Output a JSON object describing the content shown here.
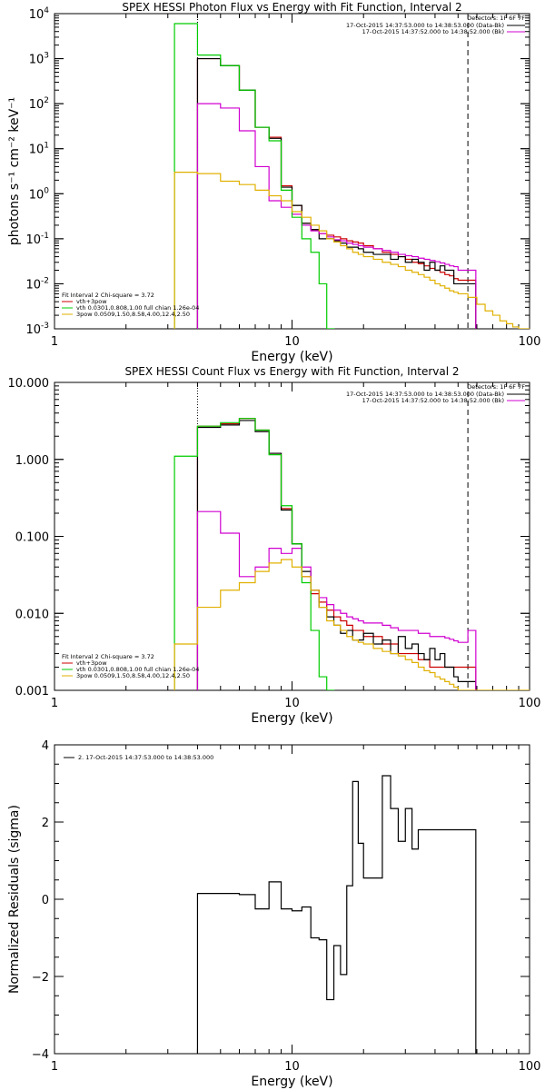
{
  "chart_data": [
    {
      "type": "line",
      "title": "SPEX HESSI Photon Flux vs Energy with Fit Function, Interval 2",
      "xlabel": "Energy (keV)",
      "ylabel": "photons s⁻¹ cm⁻² keV⁻¹",
      "xscale": "log",
      "yscale": "log",
      "xlim": [
        1,
        100
      ],
      "ylim": [
        0.001,
        10000
      ],
      "x_ticks": [
        {
          "v": 1,
          "label": "1"
        },
        {
          "v": 10,
          "label": "10"
        },
        {
          "v": 100,
          "label": "100"
        }
      ],
      "y_ticks": [
        {
          "v": 0.001,
          "base": "10",
          "exp": "-3"
        },
        {
          "v": 0.01,
          "base": "10",
          "exp": "-2"
        },
        {
          "v": 0.1,
          "base": "10",
          "exp": "-1"
        },
        {
          "v": 1,
          "base": "10",
          "exp": "0"
        },
        {
          "v": 10,
          "base": "10",
          "exp": "1"
        },
        {
          "v": 100,
          "base": "10",
          "exp": "2"
        },
        {
          "v": 1000,
          "base": "10",
          "exp": "3"
        },
        {
          "v": 10000,
          "base": "10",
          "exp": "4"
        }
      ],
      "vlines": [
        {
          "x": 4.0,
          "style": "dotted"
        },
        {
          "x": 55,
          "style": "dashed"
        }
      ],
      "legend_top_right": {
        "header": "Detectors: 1F 6F 7F",
        "lines": [
          {
            "text": "17-Oct-2015 14:37:53.000 to 14:38:53.000 (Data-Bk)",
            "color": "#000000"
          },
          {
            "text": "17-Oct-2015 14:37:52.000 to 14:38:52.000 (Bk)",
            "color": "#d000d0"
          }
        ]
      },
      "legend_bottom_left": {
        "header": "Fit Interval 2   Chi-square = 3.72",
        "lines": [
          {
            "text": "vth+3pow",
            "color": "#cc0000"
          },
          {
            "text": "vth 0.0301,0.808,1.00  full chian 1.26e-04",
            "color": "#00cc00"
          },
          {
            "text": "3pow 0.0509,1.50,8.58,4.00,12.4,2.50",
            "color": "#e0b000"
          }
        ]
      },
      "series": [
        {
          "name": "vth+3pow",
          "color": "#cc0000",
          "x": [
            4,
            5,
            6,
            7,
            8,
            9,
            10,
            11,
            12,
            13,
            14,
            15,
            16,
            17,
            18,
            19,
            20,
            22,
            24,
            26,
            28,
            30,
            32,
            34,
            36,
            38,
            40,
            42,
            44,
            46,
            48,
            50,
            55
          ],
          "y": [
            1000,
            700,
            200,
            30,
            18,
            1.5,
            0.55,
            0.22,
            0.16,
            0.13,
            0.12,
            0.11,
            0.1,
            0.09,
            0.085,
            0.08,
            0.07,
            0.06,
            0.05,
            0.045,
            0.04,
            0.035,
            0.03,
            0.028,
            0.025,
            0.022,
            0.02,
            0.018,
            0.016,
            0.015,
            0.013,
            0.012,
            0.012
          ]
        },
        {
          "name": "Data-Bk",
          "color": "#000000",
          "x": [
            4,
            5,
            6,
            7,
            8,
            9,
            10,
            11,
            12,
            13,
            14,
            15,
            16,
            17,
            18,
            19,
            20,
            22,
            24,
            26,
            28,
            30,
            32,
            34,
            36,
            38,
            40,
            42,
            44,
            46,
            48,
            50,
            55
          ],
          "y": [
            1000,
            700,
            200,
            30,
            17,
            1.4,
            0.55,
            0.22,
            0.16,
            0.1,
            0.1,
            0.09,
            0.08,
            0.065,
            0.065,
            0.06,
            0.05,
            0.045,
            0.045,
            0.035,
            0.04,
            0.03,
            0.035,
            0.03,
            0.02,
            0.03,
            0.02,
            0.025,
            0.02,
            0.02,
            0.01,
            0.01,
            0.01
          ]
        },
        {
          "name": "Bk",
          "color": "#d000d0",
          "x": [
            4,
            5,
            6,
            7,
            8,
            9,
            10,
            11,
            12,
            13,
            14,
            15,
            16,
            17,
            18,
            19,
            20,
            22,
            24,
            26,
            28,
            30,
            32,
            34,
            36,
            38,
            40,
            42,
            44,
            46,
            48,
            50,
            55
          ],
          "y": [
            100,
            80,
            25,
            4,
            0.7,
            0.5,
            0.35,
            0.2,
            0.15,
            0.13,
            0.11,
            0.095,
            0.09,
            0.08,
            0.075,
            0.07,
            0.065,
            0.06,
            0.055,
            0.05,
            0.045,
            0.042,
            0.04,
            0.037,
            0.035,
            0.033,
            0.031,
            0.029,
            0.027,
            0.025,
            0.024,
            0.02,
            0.02
          ]
        },
        {
          "name": "vth",
          "color": "#00cc00",
          "x": [
            3.2,
            4,
            5,
            6,
            7,
            8,
            9,
            10,
            11,
            12,
            13,
            14
          ],
          "y": [
            6000,
            1200,
            700,
            200,
            30,
            15,
            1.2,
            0.3,
            0.1,
            0.05,
            0.01,
            0.001
          ]
        },
        {
          "name": "3pow",
          "color": "#e0b000",
          "x": [
            3.2,
            4,
            5,
            6,
            7,
            8,
            9,
            10,
            11,
            12,
            13,
            14,
            15,
            16,
            17,
            18,
            19,
            20,
            22,
            24,
            26,
            28,
            30,
            32,
            34,
            36,
            38,
            40,
            42,
            44,
            46,
            48,
            50,
            55,
            60,
            65,
            70,
            75,
            80,
            85,
            90,
            95
          ],
          "y": [
            3,
            2.8,
            1.9,
            1.6,
            1.2,
            0.9,
            0.7,
            0.4,
            0.3,
            0.2,
            0.15,
            0.1,
            0.085,
            0.07,
            0.06,
            0.05,
            0.045,
            0.04,
            0.035,
            0.03,
            0.027,
            0.024,
            0.02,
            0.018,
            0.016,
            0.014,
            0.012,
            0.01,
            0.009,
            0.008,
            0.007,
            0.0065,
            0.006,
            0.005,
            0.0035,
            0.0025,
            0.002,
            0.0015,
            0.0013,
            0.0011,
            0.001,
            0.001
          ]
        }
      ]
    },
    {
      "type": "line",
      "title": "SPEX HESSI Count Flux vs Energy with Fit Function, Interval 2",
      "xlabel": "Energy (keV)",
      "ylabel": "",
      "xscale": "log",
      "yscale": "log",
      "xlim": [
        1,
        100
      ],
      "ylim": [
        0.001,
        10
      ],
      "x_ticks": [
        {
          "v": 1,
          "label": "1"
        },
        {
          "v": 10,
          "label": "10"
        },
        {
          "v": 100,
          "label": "100"
        }
      ],
      "y_ticks": [
        {
          "v": 0.001,
          "label": "0.001"
        },
        {
          "v": 0.01,
          "label": "0.010"
        },
        {
          "v": 0.1,
          "label": "0.100"
        },
        {
          "v": 1,
          "label": "1.000"
        },
        {
          "v": 10,
          "label": "10.000"
        }
      ],
      "vlines": [
        {
          "x": 4.0,
          "style": "dotted"
        },
        {
          "x": 55,
          "style": "dashed"
        }
      ],
      "legend_top_right": {
        "header": "Detectors: 1F 6F 7F",
        "lines": [
          {
            "text": "17-Oct-2015 14:37:53.000 to 14:38:53.000 (Data-Bk)",
            "color": "#000000"
          },
          {
            "text": "17-Oct-2015 14:37:52.000 to 14:38:52.000 (Bk)",
            "color": "#d000d0"
          }
        ]
      },
      "legend_bottom_left": {
        "header": "Fit Interval 2   Chi-square = 3.72",
        "lines": [
          {
            "text": "vth+3pow",
            "color": "#cc0000"
          },
          {
            "text": "vth 0.0301,0.808,1.00  full chian 1.26e-04",
            "color": "#00cc00"
          },
          {
            "text": "3pow 0.0509,1.50,8.58,4.00,12.4,2.50",
            "color": "#e0b000"
          }
        ]
      },
      "series": [
        {
          "name": "vth+3pow",
          "color": "#cc0000",
          "x": [
            4,
            5,
            6,
            7,
            8,
            9,
            10,
            11,
            12,
            13,
            14,
            15,
            16,
            17,
            18,
            19,
            20,
            22,
            24,
            26,
            28,
            30,
            32,
            34,
            36,
            38,
            40,
            42,
            44,
            46,
            48,
            50,
            55
          ],
          "y": [
            2.7,
            2.9,
            3.4,
            2.4,
            1.2,
            0.23,
            0.08,
            0.03,
            0.018,
            0.014,
            0.011,
            0.009,
            0.008,
            0.007,
            0.006,
            0.006,
            0.005,
            0.005,
            0.004,
            0.004,
            0.003,
            0.003,
            0.003,
            0.0025,
            0.0025,
            0.002,
            0.002,
            0.002,
            0.002,
            0.002,
            0.002,
            0.002,
            0.002
          ]
        },
        {
          "name": "Data-Bk",
          "color": "#000000",
          "x": [
            4,
            5,
            6,
            7,
            8,
            9,
            10,
            11,
            12,
            13,
            14,
            15,
            16,
            17,
            18,
            19,
            20,
            22,
            24,
            26,
            28,
            30,
            32,
            34,
            36,
            38,
            40,
            42,
            44,
            46,
            48,
            50,
            55
          ],
          "y": [
            2.6,
            2.8,
            3.2,
            2.3,
            1.2,
            0.22,
            0.08,
            0.035,
            0.02,
            0.012,
            0.009,
            0.007,
            0.0055,
            0.006,
            0.0045,
            0.0045,
            0.0055,
            0.004,
            0.0045,
            0.003,
            0.005,
            0.0035,
            0.004,
            0.003,
            0.0025,
            0.0035,
            0.0025,
            0.003,
            0.002,
            0.002,
            0.0015,
            0.0013,
            0.0013
          ]
        },
        {
          "name": "Bk",
          "color": "#d000d0",
          "x": [
            4,
            5,
            6,
            7,
            8,
            9,
            10,
            11,
            12,
            13,
            14,
            15,
            16,
            17,
            18,
            19,
            20,
            22,
            24,
            26,
            28,
            30,
            32,
            34,
            36,
            38,
            40,
            42,
            44,
            46,
            48,
            50,
            55
          ],
          "y": [
            0.21,
            0.11,
            0.03,
            0.04,
            0.07,
            0.06,
            0.07,
            0.04,
            0.02,
            0.016,
            0.013,
            0.011,
            0.01,
            0.009,
            0.0085,
            0.008,
            0.0075,
            0.0075,
            0.007,
            0.0065,
            0.006,
            0.006,
            0.006,
            0.0055,
            0.0055,
            0.005,
            0.005,
            0.005,
            0.0048,
            0.0046,
            0.0044,
            0.0042,
            0.006
          ]
        },
        {
          "name": "vth",
          "color": "#00cc00",
          "x": [
            3.2,
            4,
            5,
            6,
            7,
            8,
            9,
            10,
            11,
            12,
            13,
            14
          ],
          "y": [
            1.1,
            2.7,
            3.0,
            3.4,
            2.4,
            1.15,
            0.25,
            0.08,
            0.025,
            0.006,
            0.0015,
            0.001
          ]
        },
        {
          "name": "3pow",
          "color": "#e0b000",
          "x": [
            3.2,
            4,
            5,
            6,
            7,
            8,
            9,
            10,
            11,
            12,
            13,
            14,
            15,
            16,
            17,
            18,
            19,
            20,
            22,
            24,
            26,
            28,
            30,
            32,
            34,
            36,
            38,
            40,
            42,
            44,
            46,
            48,
            50,
            55,
            60,
            65,
            70,
            75,
            80,
            85,
            90,
            95
          ],
          "y": [
            0.004,
            0.012,
            0.02,
            0.025,
            0.035,
            0.045,
            0.05,
            0.04,
            0.03,
            0.02,
            0.012,
            0.008,
            0.007,
            0.006,
            0.005,
            0.0045,
            0.0042,
            0.004,
            0.0035,
            0.0032,
            0.003,
            0.0028,
            0.0025,
            0.0023,
            0.002,
            0.0018,
            0.0017,
            0.0015,
            0.0014,
            0.0013,
            0.0012,
            0.0011,
            0.001,
            0.001,
            0.001,
            0.001,
            0.001,
            0.001,
            0.001,
            0.001,
            0.001,
            0.001
          ]
        }
      ]
    },
    {
      "type": "line",
      "title": "",
      "xlabel": "Energy (keV)",
      "ylabel": "Normalized Residuals (sigma)",
      "xscale": "log",
      "yscale": "linear",
      "xlim": [
        1,
        100
      ],
      "ylim": [
        -4,
        4
      ],
      "x_ticks": [
        {
          "v": 1,
          "label": "1"
        },
        {
          "v": 10,
          "label": "10"
        },
        {
          "v": 100,
          "label": "100"
        }
      ],
      "y_ticks": [
        {
          "v": -4,
          "label": "−4"
        },
        {
          "v": -2,
          "label": "−2"
        },
        {
          "v": 0,
          "label": "0"
        },
        {
          "v": 2,
          "label": "2"
        },
        {
          "v": 4,
          "label": "4"
        }
      ],
      "legend_top_left": {
        "lines": [
          {
            "text": "2. 17-Oct-2015 14:37:53.000 to 14:38:53.000",
            "color": "#000000"
          }
        ]
      },
      "series": [
        {
          "name": "2. 17-Oct-2015 14:37:53.000 to 14:38:53.000",
          "color": "#000000",
          "x": [
            4,
            5,
            6,
            7,
            8,
            9,
            10,
            11,
            12,
            13,
            14,
            15,
            16,
            17,
            18,
            19,
            20,
            22,
            24,
            26,
            28,
            30,
            32,
            34,
            36,
            38,
            40,
            42,
            44,
            46,
            48,
            50,
            55
          ],
          "y": [
            0.15,
            0.15,
            0.12,
            -0.25,
            0.45,
            -0.25,
            -0.3,
            -0.2,
            -1.0,
            -1.05,
            -2.6,
            -1.2,
            -1.95,
            0.35,
            3.05,
            1.45,
            0.55,
            0.55,
            3.2,
            2.35,
            1.5,
            2.35,
            1.3,
            1.8,
            1.8,
            1.8,
            1.8,
            1.8,
            1.8,
            1.8,
            1.8,
            1.8,
            1.8
          ]
        }
      ]
    }
  ]
}
